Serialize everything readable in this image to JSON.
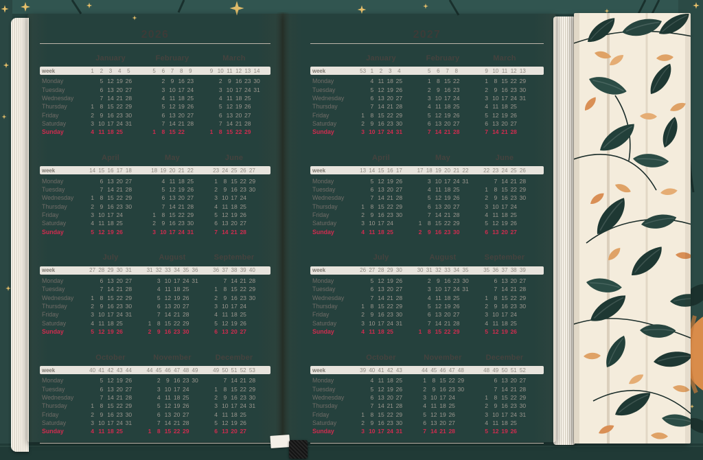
{
  "labels": {
    "week": "week",
    "days": [
      "Monday",
      "Tuesday",
      "Wednesday",
      "Thursday",
      "Friday",
      "Saturday",
      "Sunday"
    ]
  },
  "pages": [
    {
      "year": "2026",
      "months": [
        {
          "name": "January",
          "weeks": [
            1,
            2,
            3,
            4,
            5
          ],
          "first_weekday": 3,
          "days": 31
        },
        {
          "name": "February",
          "weeks": [
            5,
            6,
            7,
            8,
            9
          ],
          "first_weekday": 6,
          "days": 28
        },
        {
          "name": "March",
          "weeks": [
            9,
            10,
            11,
            12,
            13,
            14
          ],
          "first_weekday": 6,
          "days": 31
        },
        {
          "name": "April",
          "weeks": [
            14,
            15,
            16,
            17,
            18
          ],
          "first_weekday": 2,
          "days": 30
        },
        {
          "name": "May",
          "weeks": [
            18,
            19,
            20,
            21,
            22
          ],
          "first_weekday": 4,
          "days": 31
        },
        {
          "name": "June",
          "weeks": [
            23,
            24,
            25,
            26,
            27
          ],
          "first_weekday": 0,
          "days": 30
        },
        {
          "name": "July",
          "weeks": [
            27,
            28,
            29,
            30,
            31
          ],
          "first_weekday": 2,
          "days": 31
        },
        {
          "name": "August",
          "weeks": [
            31,
            32,
            33,
            34,
            35,
            36
          ],
          "first_weekday": 5,
          "days": 31
        },
        {
          "name": "September",
          "weeks": [
            36,
            37,
            38,
            39,
            40
          ],
          "first_weekday": 1,
          "days": 30
        },
        {
          "name": "October",
          "weeks": [
            40,
            41,
            42,
            43,
            44
          ],
          "first_weekday": 3,
          "days": 31
        },
        {
          "name": "November",
          "weeks": [
            44,
            45,
            46,
            47,
            48,
            49
          ],
          "first_weekday": 6,
          "days": 30
        },
        {
          "name": "December",
          "weeks": [
            49,
            50,
            51,
            52,
            53
          ],
          "first_weekday": 1,
          "days": 31
        }
      ]
    },
    {
      "year": "2027",
      "months": [
        {
          "name": "January",
          "weeks": [
            53,
            1,
            2,
            3,
            4
          ],
          "first_weekday": 4,
          "days": 31
        },
        {
          "name": "February",
          "weeks": [
            5,
            6,
            7,
            8
          ],
          "first_weekday": 0,
          "days": 28
        },
        {
          "name": "March",
          "weeks": [
            9,
            10,
            11,
            12,
            13
          ],
          "first_weekday": 0,
          "days": 31
        },
        {
          "name": "April",
          "weeks": [
            13,
            14,
            15,
            16,
            17
          ],
          "first_weekday": 3,
          "days": 30
        },
        {
          "name": "May",
          "weeks": [
            17,
            18,
            19,
            20,
            21,
            22
          ],
          "first_weekday": 5,
          "days": 31
        },
        {
          "name": "June",
          "weeks": [
            22,
            23,
            24,
            25,
            26
          ],
          "first_weekday": 1,
          "days": 30
        },
        {
          "name": "July",
          "weeks": [
            26,
            27,
            28,
            29,
            30
          ],
          "first_weekday": 3,
          "days": 31
        },
        {
          "name": "August",
          "weeks": [
            30,
            31,
            32,
            33,
            34,
            35
          ],
          "first_weekday": 6,
          "days": 31
        },
        {
          "name": "September",
          "weeks": [
            35,
            36,
            37,
            38,
            39
          ],
          "first_weekday": 2,
          "days": 30
        },
        {
          "name": "October",
          "weeks": [
            39,
            40,
            41,
            42,
            43
          ],
          "first_weekday": 4,
          "days": 31
        },
        {
          "name": "November",
          "weeks": [
            44,
            45,
            46,
            47,
            48
          ],
          "first_weekday": 0,
          "days": 30
        },
        {
          "name": "December",
          "weeks": [
            48,
            49,
            50,
            51,
            52
          ],
          "first_weekday": 2,
          "days": 31
        }
      ]
    }
  ],
  "colors": {
    "cover_teal": "#25413d",
    "cover_top_strip": "#315550",
    "page_cream": "#f5efe6",
    "flap_cream": "#f4ecdc",
    "week_band_gray": "#e8e4dd",
    "date_gray": "#9c978f",
    "day_label_gray": "#716d68",
    "sunday_red": "#d02c4f",
    "month_title_dark": "#45423e",
    "leaf_dark_teal": "#1e3833",
    "leaf_orange": "#dfa266",
    "star_gold": "#e8c06a"
  }
}
